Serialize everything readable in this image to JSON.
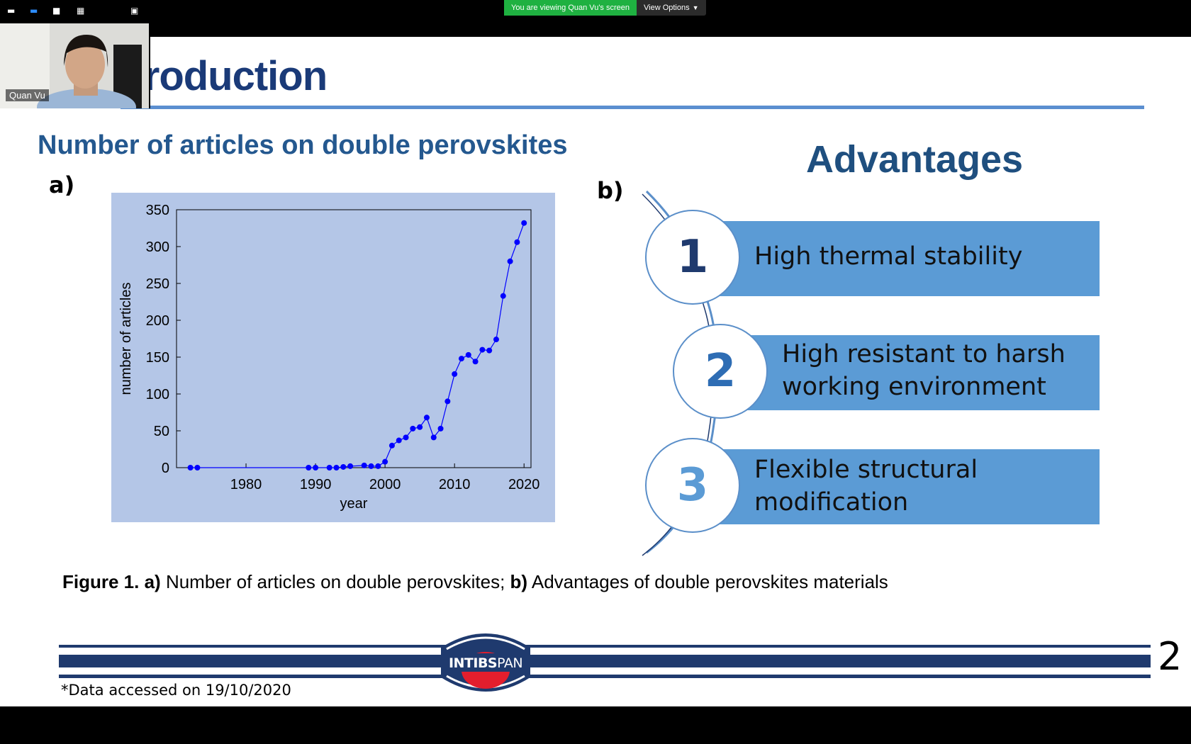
{
  "zoom": {
    "viewing_text": "You are viewing Quan Vu's screen",
    "view_options_label": "View Options",
    "participant_name": "Quan Vu"
  },
  "slide": {
    "title": "ntroduction",
    "chart_heading": "Number of articles on double perovskites",
    "panel_a": "a)",
    "panel_b": "b)",
    "advantages_heading": "Advantages",
    "advantages": [
      {
        "number": "1",
        "lines": [
          "High thermal stability"
        ]
      },
      {
        "number": "2",
        "lines": [
          "High resistant to harsh",
          "working environment"
        ]
      },
      {
        "number": "3",
        "lines": [
          "Flexible structural",
          "modification"
        ]
      }
    ],
    "caption": {
      "fig_label": "Figure 1.",
      "a_label": "a)",
      "a_text": " Number of articles on double perovskites; ",
      "b_label": "b)",
      "b_text": " Advantages of double perovskites materials"
    },
    "logo": {
      "part1": "INTIBS",
      "part2": "PAN"
    },
    "page_number": "2",
    "data_note": "*Data accessed on 19/10/2020"
  },
  "colors": {
    "title": "#1a3a78",
    "heading": "#24588f",
    "bar": "#5b9bd5",
    "chart_bg": "#b4c6e7",
    "series": "#0000ff",
    "zoom_green": "#1fb141"
  },
  "chart_data": {
    "type": "line",
    "title": "",
    "xlabel": "year",
    "ylabel": "number of articles",
    "xlim": [
      1970,
      2021
    ],
    "ylim": [
      0,
      350
    ],
    "xticks": [
      1980,
      1990,
      2000,
      2010,
      2020
    ],
    "yticks": [
      0,
      50,
      100,
      150,
      200,
      250,
      300,
      350
    ],
    "grid": false,
    "series": [
      {
        "x": [
          1972,
          1973,
          1989,
          1990,
          1992,
          1993,
          1994,
          1995,
          1997,
          1998,
          1999,
          2000,
          2001,
          2002,
          2003,
          2004,
          2005,
          2006,
          2007,
          2008,
          2009,
          2010,
          2011,
          2012,
          2013,
          2014,
          2015,
          2016,
          2017,
          2018,
          2019,
          2020
        ],
        "y": [
          0,
          0,
          0,
          0,
          0,
          0,
          1,
          2,
          3,
          2,
          2,
          8,
          30,
          37,
          41,
          53,
          55,
          68,
          41,
          53,
          90,
          127,
          148,
          153,
          144,
          160,
          159,
          174,
          233,
          280,
          306,
          332
        ]
      }
    ]
  }
}
